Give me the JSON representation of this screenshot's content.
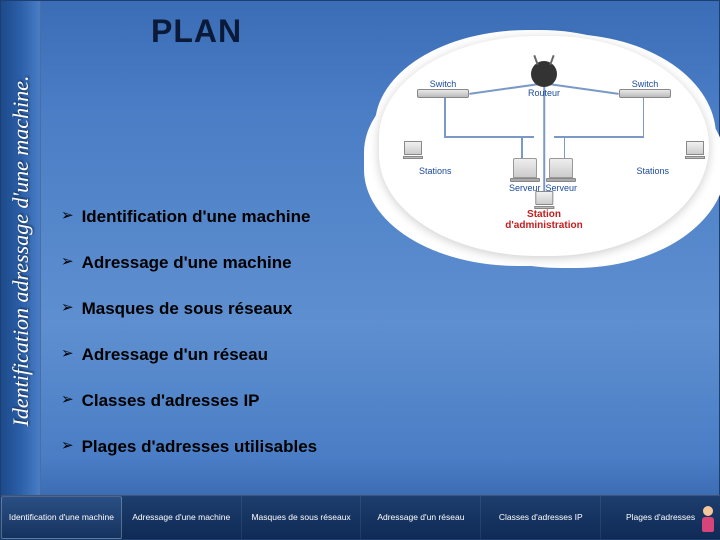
{
  "sidebar_title": "Identification adressage d'une machine.",
  "slide_title": "PLAN",
  "bullets": [
    "Identification d'une machine",
    "Adressage d'une machine",
    "Masques de sous réseaux",
    "Adressage d'un réseau",
    "Classes d'adresses IP",
    "Plages d'adresses utilisables"
  ],
  "diagram": {
    "router": "Routeur",
    "switch": "Switch",
    "server": "Serveur",
    "stations": "Stations",
    "admin_line1": "Station",
    "admin_line2": "d'administration"
  },
  "nav": [
    "Identification d'une machine",
    "Adressage d'une machine",
    "Masques de sous réseaux",
    "Adressage d'un réseau",
    "Classes d'adresses IP",
    "Plages d'adresses"
  ],
  "colors": {
    "bg_top": "#3a6db5",
    "bg_bottom": "#2d5a9e",
    "nav_bg": "#0f2a55",
    "admin_red": "#c41e1e"
  }
}
